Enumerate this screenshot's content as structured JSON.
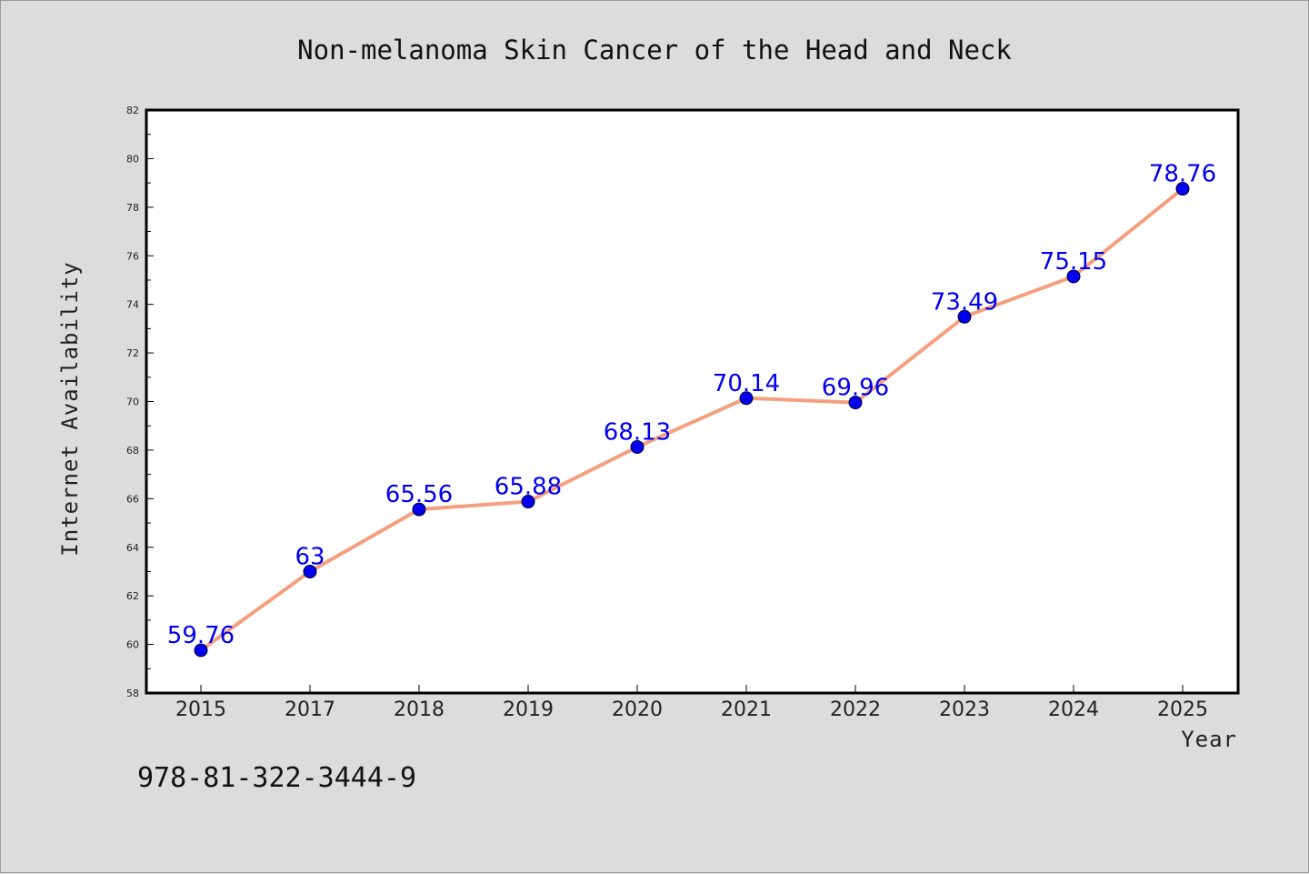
{
  "chart_data": {
    "type": "line",
    "title": "Non-melanoma Skin Cancer of the Head and Neck",
    "xlabel": "Year",
    "ylabel": "Internet Availability",
    "categories": [
      "2015",
      "2017",
      "2018",
      "2019",
      "2020",
      "2021",
      "2022",
      "2023",
      "2024",
      "2025"
    ],
    "series": [
      {
        "values": [
          59.76,
          63,
          65.56,
          65.88,
          68.13,
          70.14,
          69.96,
          73.49,
          75.15,
          78.76
        ],
        "labels": [
          "59.76",
          "63",
          "65.56",
          "65.88",
          "68.13",
          "70.14",
          "69.96",
          "73.49",
          "75.15",
          "78.76"
        ]
      }
    ],
    "ylim": [
      58,
      82
    ],
    "yticks": [
      58,
      60,
      62,
      64,
      66,
      68,
      70,
      72,
      74,
      76,
      78,
      80,
      82
    ],
    "grid": false,
    "legend": "none",
    "colors": {
      "line": "#f4a07f",
      "marker": "#0000ee",
      "label": "#0000ee",
      "background": "#dcdcdc",
      "plot_area": "#ffffff"
    }
  },
  "footnote": "978-81-322-3444-9"
}
